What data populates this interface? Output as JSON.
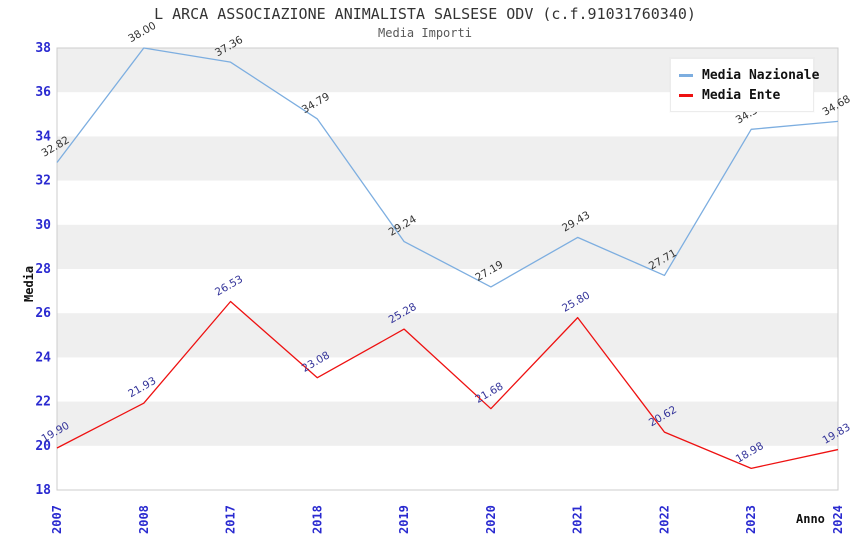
{
  "title": "L ARCA ASSOCIAZIONE ANIMALISTA SALSESE ODV (c.f.91031760340)",
  "subtitle": "Media Importi",
  "legend": {
    "items": [
      {
        "label": "Media Nazionale",
        "color": "#7daee0"
      },
      {
        "label": "Media Ente",
        "color": "#ee1111"
      }
    ]
  },
  "colors": {
    "tick_label": "#2a2ad0",
    "band_gray": "#efefef",
    "plot_border": "#cccccc",
    "nazionale_line": "#7daee0",
    "ente_line": "#ee1111",
    "nazionale_point_label": "#333333",
    "ente_point_label": "#333399"
  },
  "chart_data": {
    "type": "line",
    "title": "L ARCA ASSOCIAZIONE ANIMALISTA SALSESE ODV (c.f.91031760340)",
    "subtitle": "Media Importi",
    "xlabel": "Anno",
    "ylabel": "Media",
    "ylim": [
      18,
      38
    ],
    "ytick_step": 2,
    "yticks": [
      "18",
      "20",
      "22",
      "24",
      "26",
      "28",
      "30",
      "32",
      "34",
      "36",
      "38"
    ],
    "grid": "horizontal-bands",
    "legend_position": "top-right",
    "categories": [
      "2007",
      "2008",
      "2017",
      "2018",
      "2019",
      "2020",
      "2021",
      "2022",
      "2023",
      "2024"
    ],
    "series": [
      {
        "name": "Media Nazionale",
        "color": "#7daee0",
        "label_color": "#333333",
        "values": [
          32.82,
          38.0,
          37.36,
          34.79,
          29.24,
          27.19,
          29.43,
          27.71,
          34.32,
          34.68
        ],
        "labels": [
          "32.82",
          "38.00",
          "37.36",
          "34.79",
          "29.24",
          "27.19",
          "29.43",
          "27.71",
          "34.32",
          "34.68"
        ]
      },
      {
        "name": "Media Ente",
        "color": "#ee1111",
        "label_color": "#333399",
        "values": [
          19.9,
          21.93,
          26.53,
          23.08,
          25.28,
          21.68,
          25.8,
          20.62,
          18.98,
          19.83
        ],
        "labels": [
          "19.90",
          "21.93",
          "26.53",
          "23.08",
          "25.28",
          "21.68",
          "25.80",
          "20.62",
          "18.98",
          "19.83"
        ]
      }
    ]
  }
}
